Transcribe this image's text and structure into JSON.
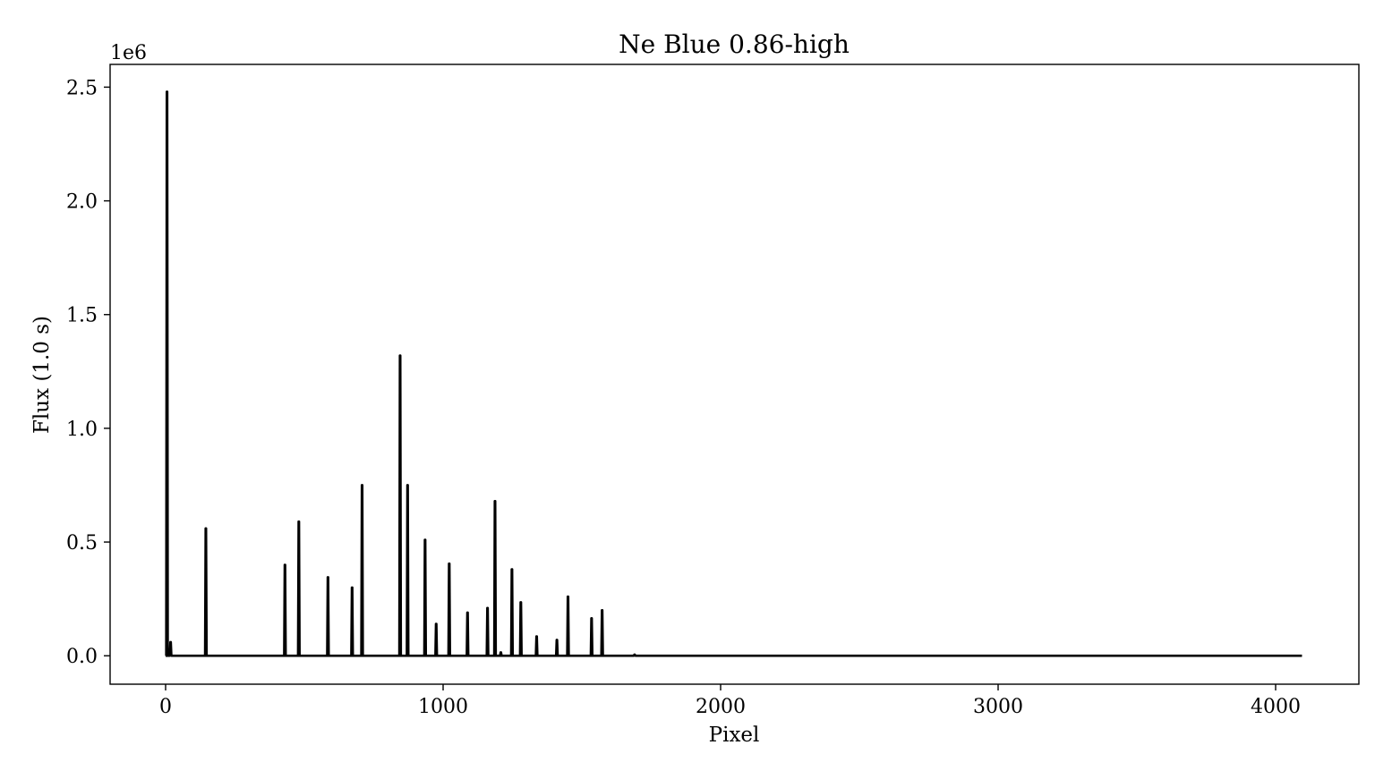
{
  "chart_data": {
    "type": "line",
    "title": "Ne Blue 0.86-high",
    "xlabel": "Pixel",
    "ylabel": "Flux (1.0 s)",
    "y_offset_label": "1e6",
    "xlim": [
      -200,
      4300
    ],
    "ylim": [
      -0.125,
      2.6
    ],
    "x_ticks": [
      0,
      1000,
      2000,
      3000,
      4000
    ],
    "x_tick_labels": [
      "0",
      "1000",
      "2000",
      "3000",
      "4000"
    ],
    "y_ticks": [
      0.0,
      0.5,
      1.0,
      1.5,
      2.0,
      2.5
    ],
    "y_tick_labels": [
      "0.0",
      "0.5",
      "1.0",
      "1.5",
      "2.0",
      "2.5"
    ],
    "grid": false,
    "legend": "none",
    "color": "#000000",
    "x_range": [
      0,
      4095
    ],
    "baseline": 0.0,
    "series": [
      {
        "peaks": [
          {
            "x": 5,
            "y": 2.48
          },
          {
            "x": 18,
            "y": 0.06
          },
          {
            "x": 145,
            "y": 0.56
          },
          {
            "x": 430,
            "y": 0.4
          },
          {
            "x": 480,
            "y": 0.59
          },
          {
            "x": 585,
            "y": 0.345
          },
          {
            "x": 672,
            "y": 0.3
          },
          {
            "x": 708,
            "y": 0.75
          },
          {
            "x": 845,
            "y": 1.32
          },
          {
            "x": 872,
            "y": 0.75
          },
          {
            "x": 935,
            "y": 0.51
          },
          {
            "x": 975,
            "y": 0.14
          },
          {
            "x": 1022,
            "y": 0.405
          },
          {
            "x": 1088,
            "y": 0.19
          },
          {
            "x": 1160,
            "y": 0.21
          },
          {
            "x": 1187,
            "y": 0.68
          },
          {
            "x": 1208,
            "y": 0.015
          },
          {
            "x": 1248,
            "y": 0.38
          },
          {
            "x": 1280,
            "y": 0.235
          },
          {
            "x": 1337,
            "y": 0.085
          },
          {
            "x": 1410,
            "y": 0.07
          },
          {
            "x": 1450,
            "y": 0.26
          },
          {
            "x": 1535,
            "y": 0.165
          },
          {
            "x": 1573,
            "y": 0.2
          },
          {
            "x": 1690,
            "y": 0.005
          }
        ]
      }
    ]
  }
}
